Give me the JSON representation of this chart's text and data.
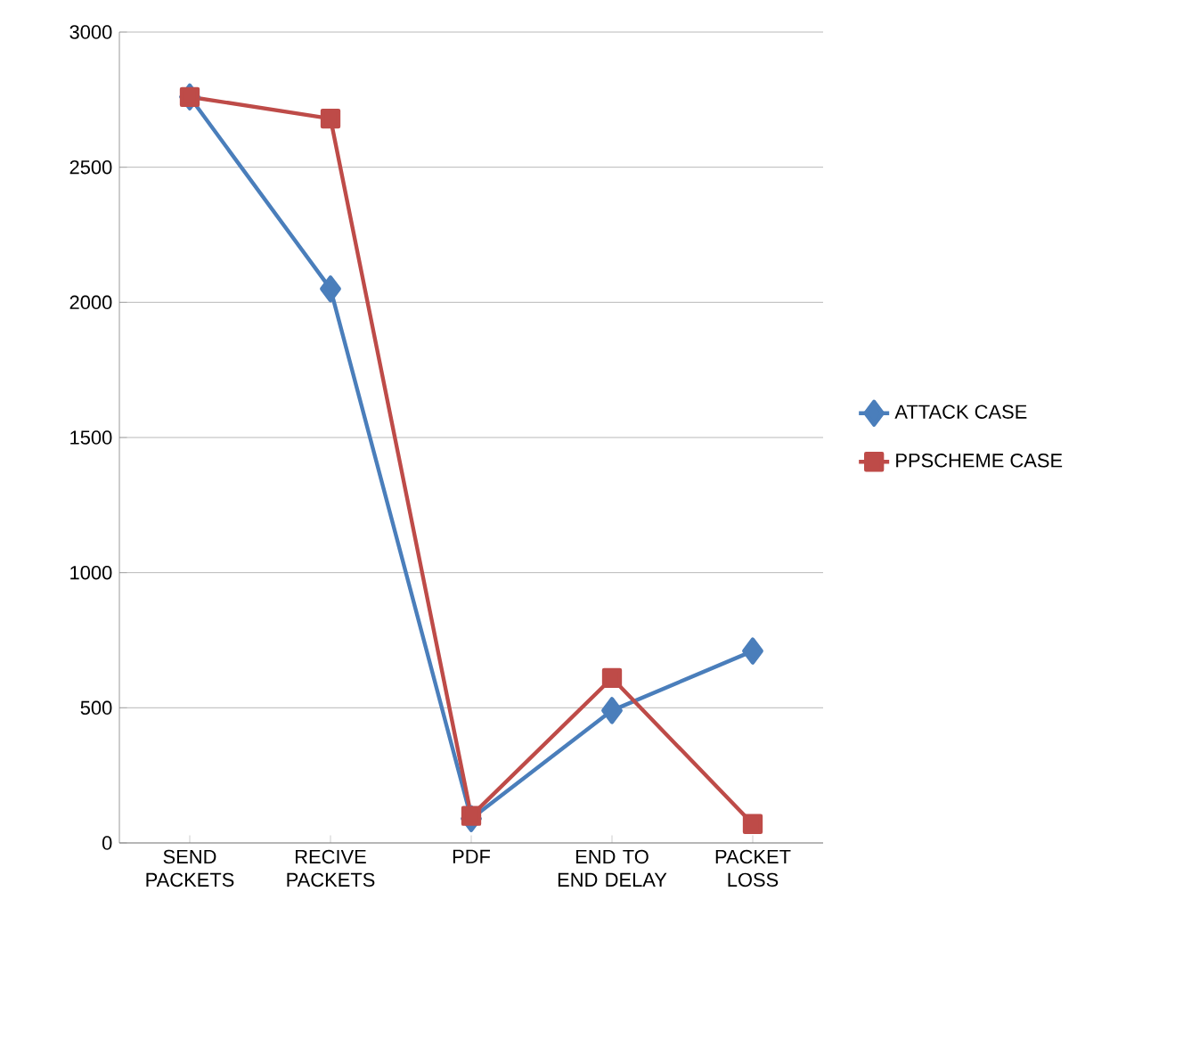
{
  "chart_data": {
    "type": "line",
    "categories": [
      "SEND PACKETS",
      "RECIVE PACKETS",
      "PDF",
      "END TO END DELAY",
      "PACKET LOSS"
    ],
    "series": [
      {
        "name": "ATTACK CASE",
        "color": "#4a7ebb",
        "marker": "diamond",
        "values": [
          2760,
          2050,
          90,
          490,
          710
        ]
      },
      {
        "name": "PPSCHEME CASE",
        "color": "#be4b48",
        "marker": "square",
        "values": [
          2760,
          2680,
          100,
          610,
          70
        ]
      }
    ],
    "ylim": [
      0,
      3000
    ],
    "yticks": [
      0,
      500,
      1000,
      1500,
      2000,
      2500,
      3000
    ],
    "grid": "y",
    "legend": "right"
  }
}
